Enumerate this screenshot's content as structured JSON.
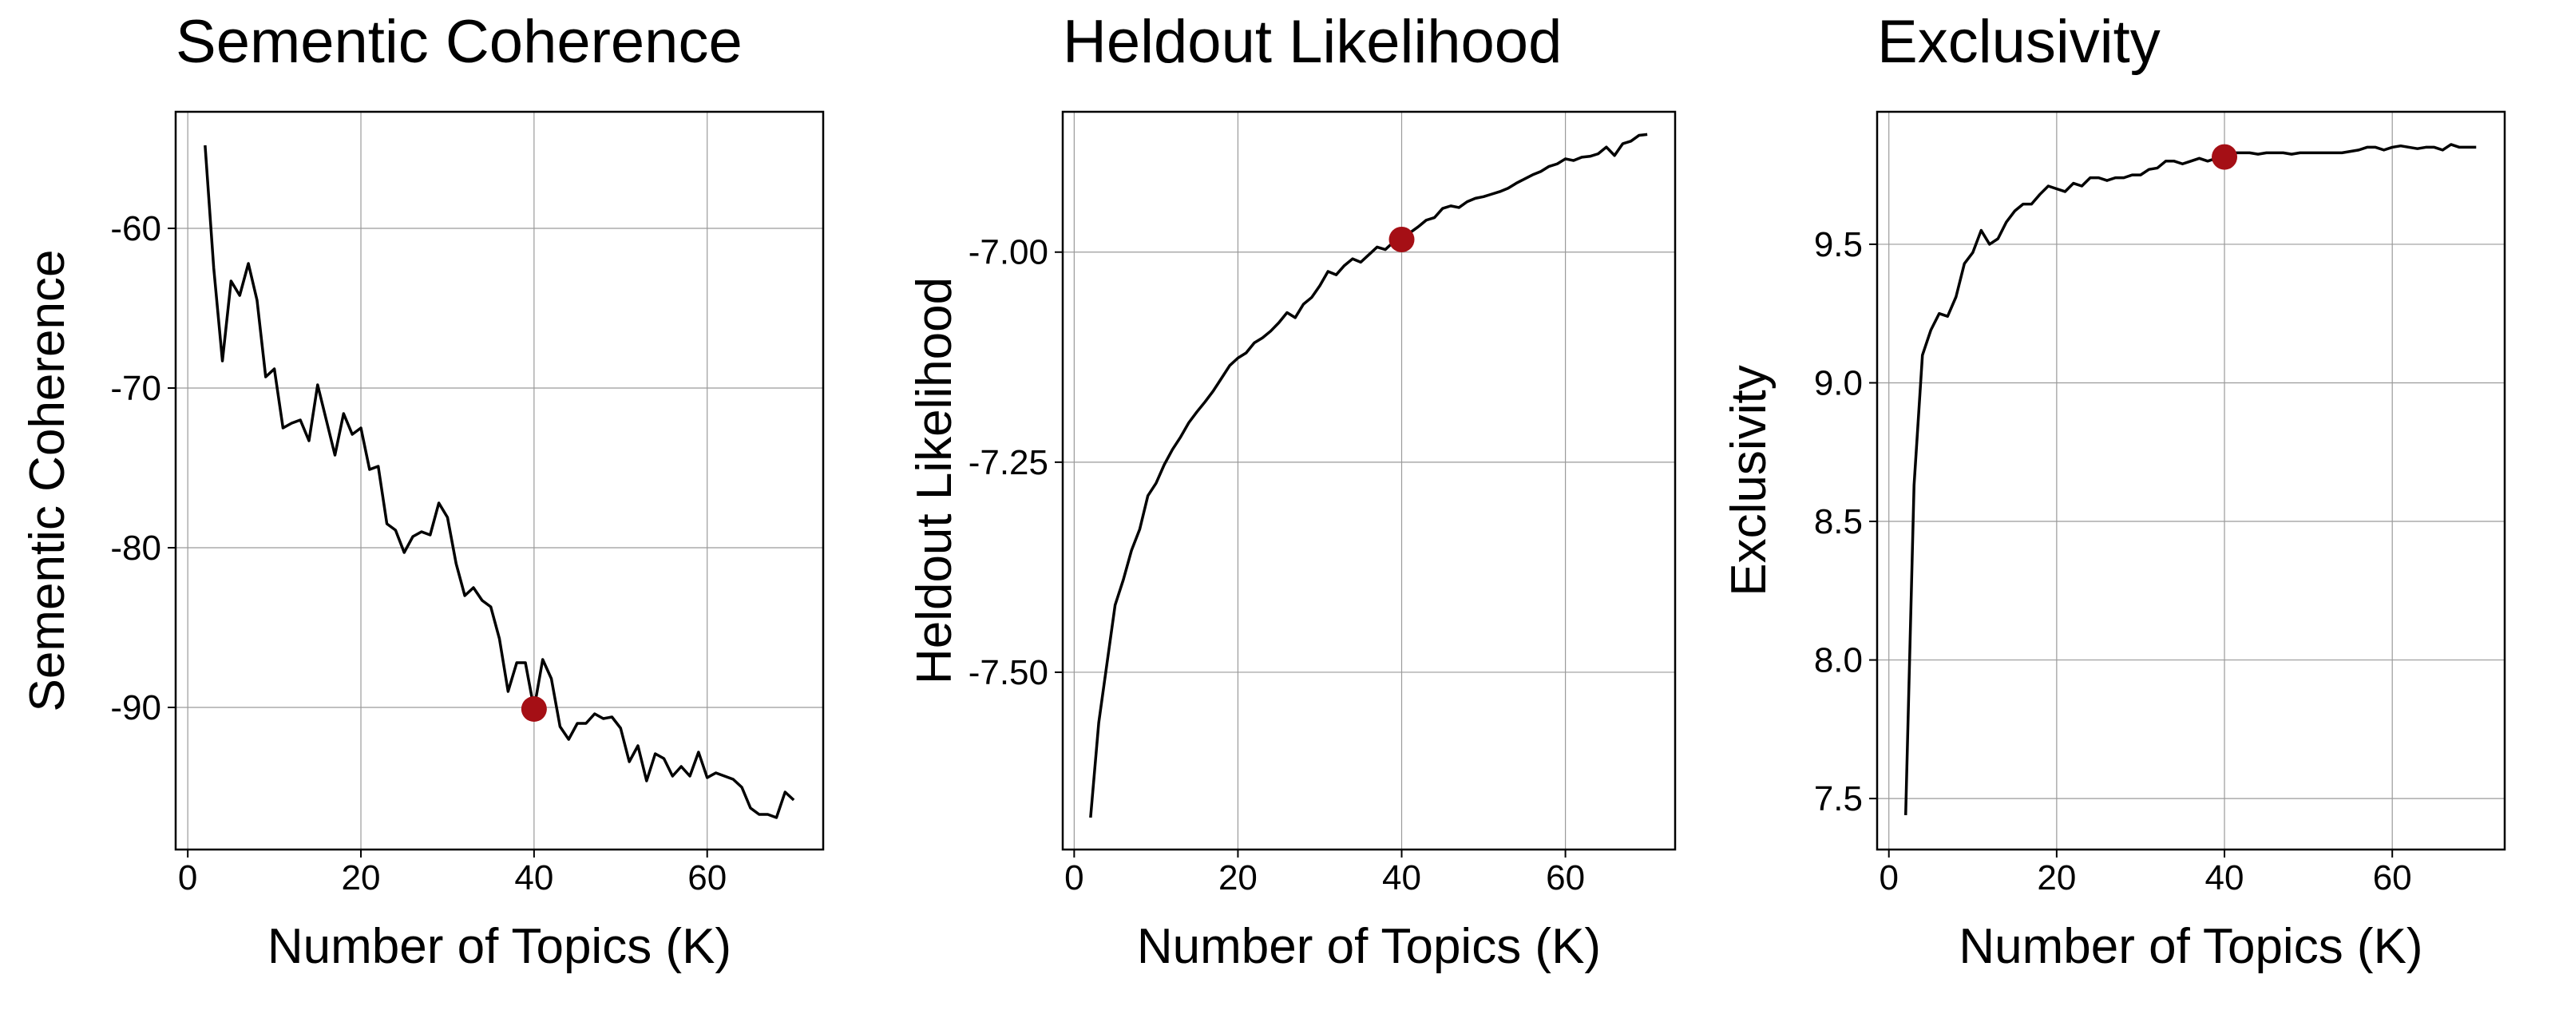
{
  "chart_data": [
    {
      "type": "line",
      "title": "Sementic Coherence",
      "xlabel": "Number of Topics (K)",
      "ylabel": "Sementic Coherence",
      "color": "#000000",
      "x": [
        2,
        3,
        4,
        5,
        6,
        7,
        8,
        9,
        10,
        11,
        12,
        13,
        14,
        15,
        16,
        17,
        18,
        19,
        20,
        21,
        22,
        23,
        24,
        25,
        26,
        27,
        28,
        29,
        30,
        31,
        32,
        33,
        34,
        35,
        36,
        37,
        38,
        39,
        40,
        41,
        42,
        43,
        44,
        45,
        46,
        47,
        48,
        49,
        50,
        51,
        52,
        53,
        54,
        55,
        56,
        57,
        58,
        59,
        60,
        61,
        62,
        63,
        64,
        65,
        66,
        67,
        68,
        69,
        70
      ],
      "values": [
        -54.8,
        -62.5,
        -68.3,
        -63.3,
        -64.2,
        -62.2,
        -64.5,
        -69.3,
        -68.8,
        -72.5,
        -72.2,
        -72.0,
        -73.3,
        -69.8,
        -72.0,
        -74.2,
        -71.6,
        -72.9,
        -72.5,
        -75.1,
        -74.9,
        -78.5,
        -78.9,
        -80.3,
        -79.3,
        -79.0,
        -79.2,
        -77.2,
        -78.1,
        -81.0,
        -83.0,
        -82.5,
        -83.3,
        -83.7,
        -85.7,
        -89.0,
        -87.2,
        -87.2,
        -90.1,
        -87.0,
        -88.2,
        -91.2,
        -92.0,
        -91.0,
        -91.0,
        -90.4,
        -90.7,
        -90.6,
        -91.3,
        -93.4,
        -92.4,
        -94.6,
        -92.9,
        -93.2,
        -94.3,
        -93.7,
        -94.3,
        -92.8,
        -94.4,
        -94.1,
        -94.3,
        -94.5,
        -95.0,
        -96.3,
        -96.7,
        -96.7,
        -96.9,
        -95.3,
        -95.8
      ],
      "highlight": {
        "x": 40,
        "y": -90.1,
        "color": "#a50f15"
      },
      "xlim": [
        -1.4,
        73.4
      ],
      "xticks": [
        0,
        20,
        40,
        60
      ],
      "ylim": [
        -98.9,
        -52.7
      ],
      "yticks": [
        -90,
        -80,
        -70,
        -60
      ],
      "grid": true
    },
    {
      "type": "line",
      "title": "Heldout Likelihood",
      "xlabel": "Number of Topics (K)",
      "ylabel": "Heldout Likelihood",
      "color": "#000000",
      "x": [
        2,
        3,
        4,
        5,
        6,
        7,
        8,
        9,
        10,
        11,
        12,
        13,
        14,
        15,
        16,
        17,
        18,
        19,
        20,
        21,
        22,
        23,
        24,
        25,
        26,
        27,
        28,
        29,
        30,
        31,
        32,
        33,
        34,
        35,
        36,
        37,
        38,
        39,
        40,
        41,
        42,
        43,
        44,
        45,
        46,
        47,
        48,
        49,
        50,
        51,
        52,
        53,
        54,
        55,
        56,
        57,
        58,
        59,
        60,
        61,
        62,
        63,
        64,
        65,
        66,
        67,
        68,
        69,
        70
      ],
      "values": [
        -7.673,
        -7.56,
        -7.49,
        -7.42,
        -7.39,
        -7.355,
        -7.33,
        -7.29,
        -7.275,
        -7.253,
        -7.235,
        -7.22,
        -7.203,
        -7.19,
        -7.178,
        -7.165,
        -7.15,
        -7.135,
        -7.126,
        -7.12,
        -7.108,
        -7.102,
        -7.094,
        -7.084,
        -7.072,
        -7.078,
        -7.062,
        -7.054,
        -7.04,
        -7.023,
        -7.027,
        -7.016,
        -7.008,
        -7.012,
        -7.003,
        -6.994,
        -6.997,
        -6.988,
        -6.985,
        -6.977,
        -6.97,
        -6.962,
        -6.959,
        -6.948,
        -6.945,
        -6.947,
        -6.94,
        -6.936,
        -6.934,
        -6.931,
        -6.928,
        -6.924,
        -6.918,
        -6.913,
        -6.908,
        -6.904,
        -6.898,
        -6.895,
        -6.889,
        -6.891,
        -6.887,
        -6.886,
        -6.883,
        -6.875,
        -6.885,
        -6.871,
        -6.868,
        -6.861,
        -6.86
      ],
      "highlight": {
        "x": 40,
        "y": -6.985,
        "color": "#a50f15"
      },
      "xlim": [
        -1.4,
        73.4
      ],
      "xticks": [
        0,
        20,
        40,
        60
      ],
      "ylim": [
        -7.711,
        -6.833
      ],
      "yticks": [
        {
          "value": -7.5,
          "label": "-7.50"
        },
        {
          "value": -7.25,
          "label": "-7.25"
        },
        {
          "value": -7,
          "label": "-7.00"
        }
      ],
      "grid": true
    },
    {
      "type": "line",
      "title": "Exclusivity",
      "xlabel": "Number of Topics (K)",
      "ylabel": "Exclusivity",
      "color": "#000000",
      "x": [
        2,
        3,
        4,
        5,
        6,
        7,
        8,
        9,
        10,
        11,
        12,
        13,
        14,
        15,
        16,
        17,
        18,
        19,
        20,
        21,
        22,
        23,
        24,
        25,
        26,
        27,
        28,
        29,
        30,
        31,
        32,
        33,
        34,
        35,
        36,
        37,
        38,
        39,
        40,
        41,
        42,
        43,
        44,
        45,
        46,
        47,
        48,
        49,
        50,
        51,
        52,
        53,
        54,
        55,
        56,
        57,
        58,
        59,
        60,
        61,
        62,
        63,
        64,
        65,
        66,
        67,
        68,
        69,
        70
      ],
      "values": [
        7.44,
        8.63,
        9.1,
        9.19,
        9.25,
        9.24,
        9.31,
        9.43,
        9.47,
        9.55,
        9.5,
        9.52,
        9.58,
        9.62,
        9.645,
        9.645,
        9.68,
        9.71,
        9.7,
        9.69,
        9.72,
        9.71,
        9.74,
        9.74,
        9.73,
        9.74,
        9.74,
        9.75,
        9.75,
        9.77,
        9.775,
        9.8,
        9.8,
        9.79,
        9.8,
        9.81,
        9.8,
        9.81,
        9.815,
        9.83,
        9.83,
        9.83,
        9.825,
        9.83,
        9.83,
        9.83,
        9.825,
        9.83,
        9.83,
        9.83,
        9.83,
        9.83,
        9.83,
        9.835,
        9.84,
        9.85,
        9.85,
        9.84,
        9.85,
        9.855,
        9.85,
        9.845,
        9.85,
        9.85,
        9.84,
        9.86,
        9.85,
        9.85,
        9.85
      ],
      "highlight": {
        "x": 40,
        "y": 9.815,
        "color": "#a50f15"
      },
      "xlim": [
        -1.4,
        73.4
      ],
      "xticks": [
        0,
        20,
        40,
        60
      ],
      "ylim": [
        7.316,
        9.978
      ],
      "yticks": [
        7.5,
        {
          "value": 8,
          "label": "8.0"
        },
        8.5,
        {
          "value": 9,
          "label": "9.0"
        },
        9.5
      ],
      "grid": true
    }
  ]
}
